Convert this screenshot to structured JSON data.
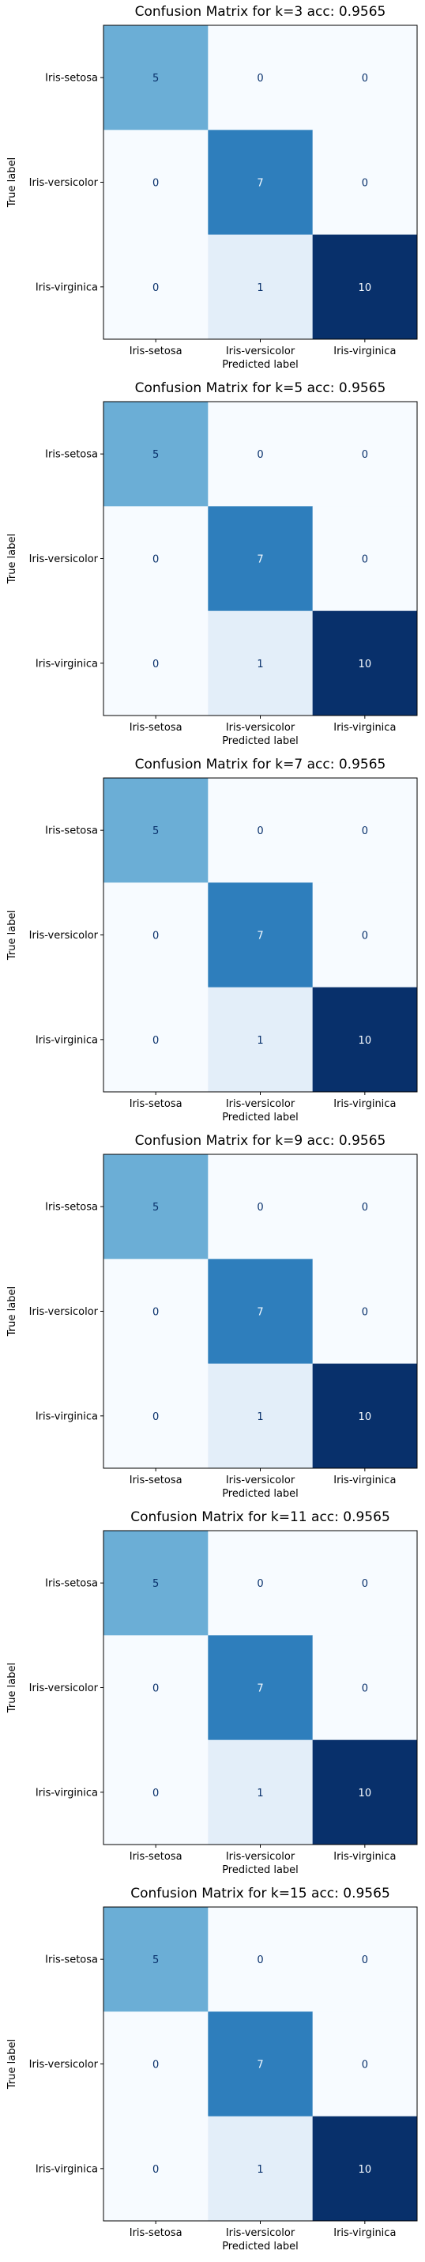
{
  "chart_data": [
    {
      "type": "heatmap",
      "title": "Confusion Matrix for k=3 acc: 0.9565",
      "xlabel": "Predicted label",
      "ylabel": "True label",
      "x_categories": [
        "Iris-setosa",
        "Iris-versicolor",
        "Iris-virginica"
      ],
      "y_categories": [
        "Iris-setosa",
        "Iris-versicolor",
        "Iris-virginica"
      ],
      "values": [
        [
          5,
          0,
          0
        ],
        [
          0,
          7,
          0
        ],
        [
          0,
          1,
          10
        ]
      ],
      "colormap": "Blues",
      "value_range": [
        0,
        10
      ]
    },
    {
      "type": "heatmap",
      "title": "Confusion Matrix for k=5 acc: 0.9565",
      "xlabel": "Predicted label",
      "ylabel": "True label",
      "x_categories": [
        "Iris-setosa",
        "Iris-versicolor",
        "Iris-virginica"
      ],
      "y_categories": [
        "Iris-setosa",
        "Iris-versicolor",
        "Iris-virginica"
      ],
      "values": [
        [
          5,
          0,
          0
        ],
        [
          0,
          7,
          0
        ],
        [
          0,
          1,
          10
        ]
      ],
      "colormap": "Blues",
      "value_range": [
        0,
        10
      ]
    },
    {
      "type": "heatmap",
      "title": "Confusion Matrix for k=7 acc: 0.9565",
      "xlabel": "Predicted label",
      "ylabel": "True label",
      "x_categories": [
        "Iris-setosa",
        "Iris-versicolor",
        "Iris-virginica"
      ],
      "y_categories": [
        "Iris-setosa",
        "Iris-versicolor",
        "Iris-virginica"
      ],
      "values": [
        [
          5,
          0,
          0
        ],
        [
          0,
          7,
          0
        ],
        [
          0,
          1,
          10
        ]
      ],
      "colormap": "Blues",
      "value_range": [
        0,
        10
      ]
    },
    {
      "type": "heatmap",
      "title": "Confusion Matrix for k=9 acc: 0.9565",
      "xlabel": "Predicted label",
      "ylabel": "True label",
      "x_categories": [
        "Iris-setosa",
        "Iris-versicolor",
        "Iris-virginica"
      ],
      "y_categories": [
        "Iris-setosa",
        "Iris-versicolor",
        "Iris-virginica"
      ],
      "values": [
        [
          5,
          0,
          0
        ],
        [
          0,
          7,
          0
        ],
        [
          0,
          1,
          10
        ]
      ],
      "colormap": "Blues",
      "value_range": [
        0,
        10
      ]
    },
    {
      "type": "heatmap",
      "title": "Confusion Matrix for k=11 acc: 0.9565",
      "xlabel": "Predicted label",
      "ylabel": "True label",
      "x_categories": [
        "Iris-setosa",
        "Iris-versicolor",
        "Iris-virginica"
      ],
      "y_categories": [
        "Iris-setosa",
        "Iris-versicolor",
        "Iris-virginica"
      ],
      "values": [
        [
          5,
          0,
          0
        ],
        [
          0,
          7,
          0
        ],
        [
          0,
          1,
          10
        ]
      ],
      "colormap": "Blues",
      "value_range": [
        0,
        10
      ]
    },
    {
      "type": "heatmap",
      "title": "Confusion Matrix for k=15 acc: 0.9565",
      "xlabel": "Predicted label",
      "ylabel": "True label",
      "x_categories": [
        "Iris-setosa",
        "Iris-versicolor",
        "Iris-virginica"
      ],
      "y_categories": [
        "Iris-setosa",
        "Iris-versicolor",
        "Iris-virginica"
      ],
      "values": [
        [
          5,
          0,
          0
        ],
        [
          0,
          7,
          0
        ],
        [
          0,
          1,
          10
        ]
      ],
      "colormap": "Blues",
      "value_range": [
        0,
        10
      ]
    }
  ]
}
